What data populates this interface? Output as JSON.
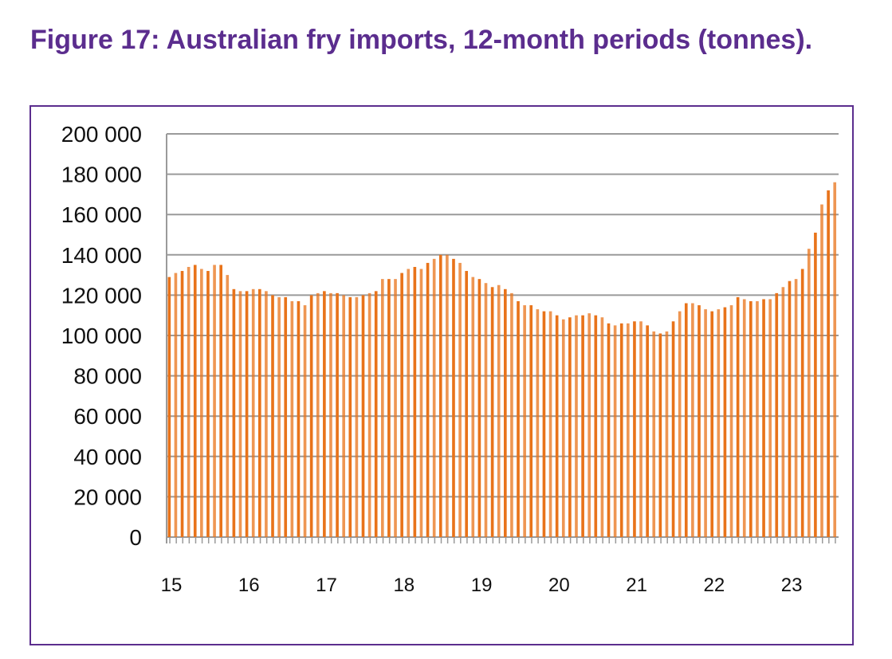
{
  "chart_data": {
    "type": "bar",
    "title": "Figure 17: Australian fry imports, 12-month periods (tonnes).",
    "xlabel": "",
    "ylabel": "",
    "ylim": [
      0,
      200000
    ],
    "yticks": [
      "0",
      "20 000",
      "40 000",
      "60 000",
      "80 000",
      "100 000",
      "120 000",
      "140 000",
      "160 000",
      "180 000",
      "200 000"
    ],
    "xticks": [
      "15",
      "16",
      "17",
      "18",
      "19",
      "20",
      "21",
      "22",
      "23"
    ],
    "grid": true,
    "bar_color": "#e8731a",
    "values": [
      129000,
      131000,
      132000,
      134000,
      135000,
      133000,
      132000,
      135000,
      135000,
      130000,
      123000,
      122000,
      122000,
      123000,
      123000,
      122000,
      120000,
      119000,
      119000,
      117000,
      117000,
      115000,
      120000,
      121000,
      122000,
      121000,
      121000,
      120000,
      119000,
      119000,
      120000,
      121000,
      122000,
      128000,
      128000,
      128000,
      131000,
      133000,
      134000,
      133000,
      136000,
      138000,
      140000,
      140000,
      138000,
      136000,
      132000,
      129000,
      128000,
      126000,
      124000,
      125000,
      123000,
      121000,
      117000,
      115000,
      115000,
      113000,
      112000,
      112000,
      110000,
      108000,
      109000,
      110000,
      110000,
      111000,
      110000,
      109000,
      106000,
      105000,
      106000,
      106000,
      107000,
      107000,
      105000,
      102000,
      101000,
      102000,
      107000,
      112000,
      116000,
      116000,
      115000,
      113000,
      112000,
      113000,
      114000,
      115000,
      119000,
      118000,
      117000,
      117000,
      118000,
      118000,
      121000,
      124000,
      127000,
      128000,
      133000,
      143000,
      151000,
      165000,
      172000,
      176000
    ]
  }
}
